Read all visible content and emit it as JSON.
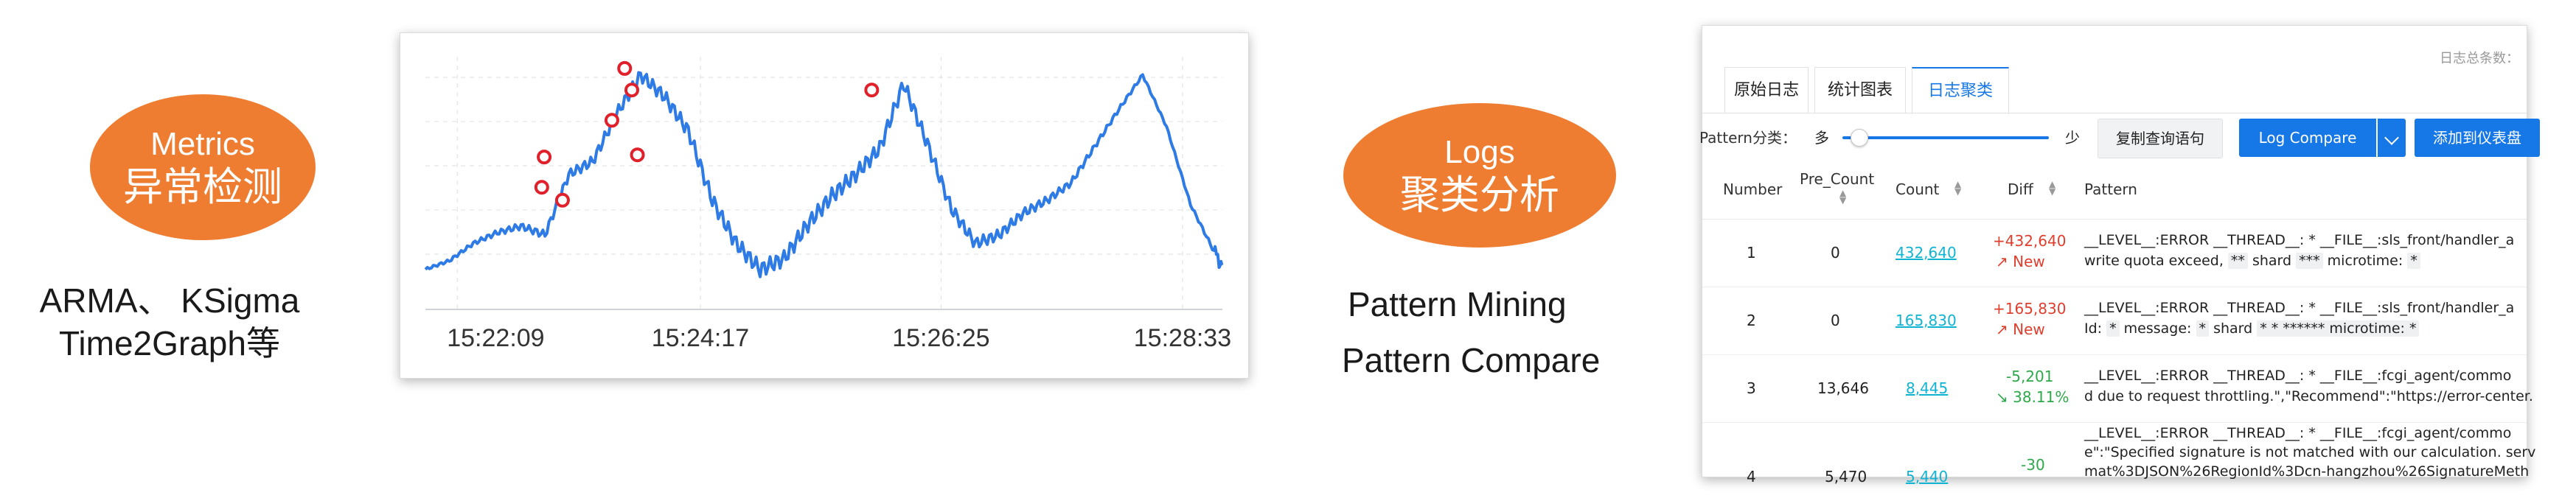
{
  "metrics": {
    "oval_line1": "Metrics",
    "oval_line2": "异常检测",
    "caption_line1": "ARMA、 KSigma",
    "caption_line2": "Time2Graph等"
  },
  "chart": {
    "x_ticks": [
      "15:22:09",
      "15:24:17",
      "15:26:25",
      "15:28:33"
    ]
  },
  "chart_data": {
    "type": "line",
    "title": "",
    "xlabel": "",
    "ylabel": "",
    "x_tick_labels": [
      "15:22:09",
      "15:24:17",
      "15:26:25",
      "15:28:33"
    ],
    "grid": true,
    "series": [
      {
        "x": [
          0,
          3,
          6,
          9,
          12,
          15,
          18,
          21,
          24,
          27,
          30,
          33,
          36,
          39,
          42,
          45,
          48,
          51,
          54,
          57,
          60,
          63,
          66,
          69,
          72,
          75,
          78,
          81,
          84,
          87,
          90,
          93,
          96,
          99,
          100
        ],
        "y": [
          10,
          14,
          22,
          27,
          30,
          26,
          54,
          60,
          82,
          100,
          90,
          74,
          42,
          22,
          10,
          15,
          31,
          44,
          54,
          66,
          96,
          68,
          38,
          22,
          26,
          36,
          42,
          50,
          67,
          84,
          100,
          76,
          40,
          18,
          12
        ]
      }
    ],
    "anomaly_points": [
      {
        "x": 14.9,
        "y": 62
      },
      {
        "x": 14.6,
        "y": 48
      },
      {
        "x": 17.2,
        "y": 42
      },
      {
        "x": 23.4,
        "y": 79
      },
      {
        "x": 25.0,
        "y": 103
      },
      {
        "x": 25.9,
        "y": 93
      },
      {
        "x": 26.6,
        "y": 63
      },
      {
        "x": 56.0,
        "y": 93
      }
    ]
  },
  "logs": {
    "oval_line1": "Logs",
    "oval_line2": "聚类分析",
    "caption_line1": "Pattern Mining",
    "caption_line2": "Pattern Compare"
  },
  "logpanel": {
    "top_right_label": "日志总条数：",
    "tabs": [
      "原始日志",
      "统计图表",
      "日志聚类"
    ],
    "pattern_label": "Pattern分类：",
    "slider_left": "多",
    "slider_right": "少",
    "slider_level": 0.08,
    "copy_query_btn": "复制查询语句",
    "log_compare_btn": "Log Compare",
    "add_dashboard_btn": "添加到仪表盘",
    "headers": {
      "number": "Number",
      "pre_count": "Pre_Count",
      "count": "Count",
      "diff": "Diff",
      "pattern": "Pattern"
    },
    "rows": [
      {
        "number": "1",
        "pre_count": "0",
        "count": "432,640",
        "diff": "+432,640",
        "diff_sub": "New",
        "p1": "__LEVEL__:ERROR __THREAD__: * __FILE__:sls_front/handler_a",
        "p2a": "write quota exceed,",
        "p2b": "**",
        "p2c": "shard",
        "p2d": "***",
        "p2e": "microtime:",
        "p2f": "*"
      },
      {
        "number": "2",
        "pre_count": "0",
        "count": "165,830",
        "diff": "+165,830",
        "diff_sub": "New",
        "p1": "__LEVEL__:ERROR __THREAD__: * __FILE__:sls_front/handler_a",
        "p2a": "Id:",
        "p2b": "*",
        "p2c": "message:",
        "p2d": "*",
        "p2e": "shard",
        "p2f": "* * ****** microtime: *"
      },
      {
        "number": "3",
        "pre_count": "13,646",
        "count": "8,445",
        "diff": "-5,201",
        "diff_sub": "38.11%",
        "p1": "__LEVEL__:ERROR __THREAD__: * __FILE__:fcgi_agent/commo",
        "p2": "d due to request throttling.\",\"Recommend\":\"https://error-center."
      },
      {
        "number": "4",
        "pre_count": "5,470",
        "count": "5,440",
        "diff": "-30",
        "diff_sub": "",
        "p1": "__LEVEL__:ERROR __THREAD__: * __FILE__:fcgi_agent/commo",
        "p2": "e\":\"Specified signature is not matched with our calculation. serv",
        "p3": "mat%3DJSON%26RegionId%3Dcn-hangzhou%26SignatureMeth"
      }
    ]
  }
}
